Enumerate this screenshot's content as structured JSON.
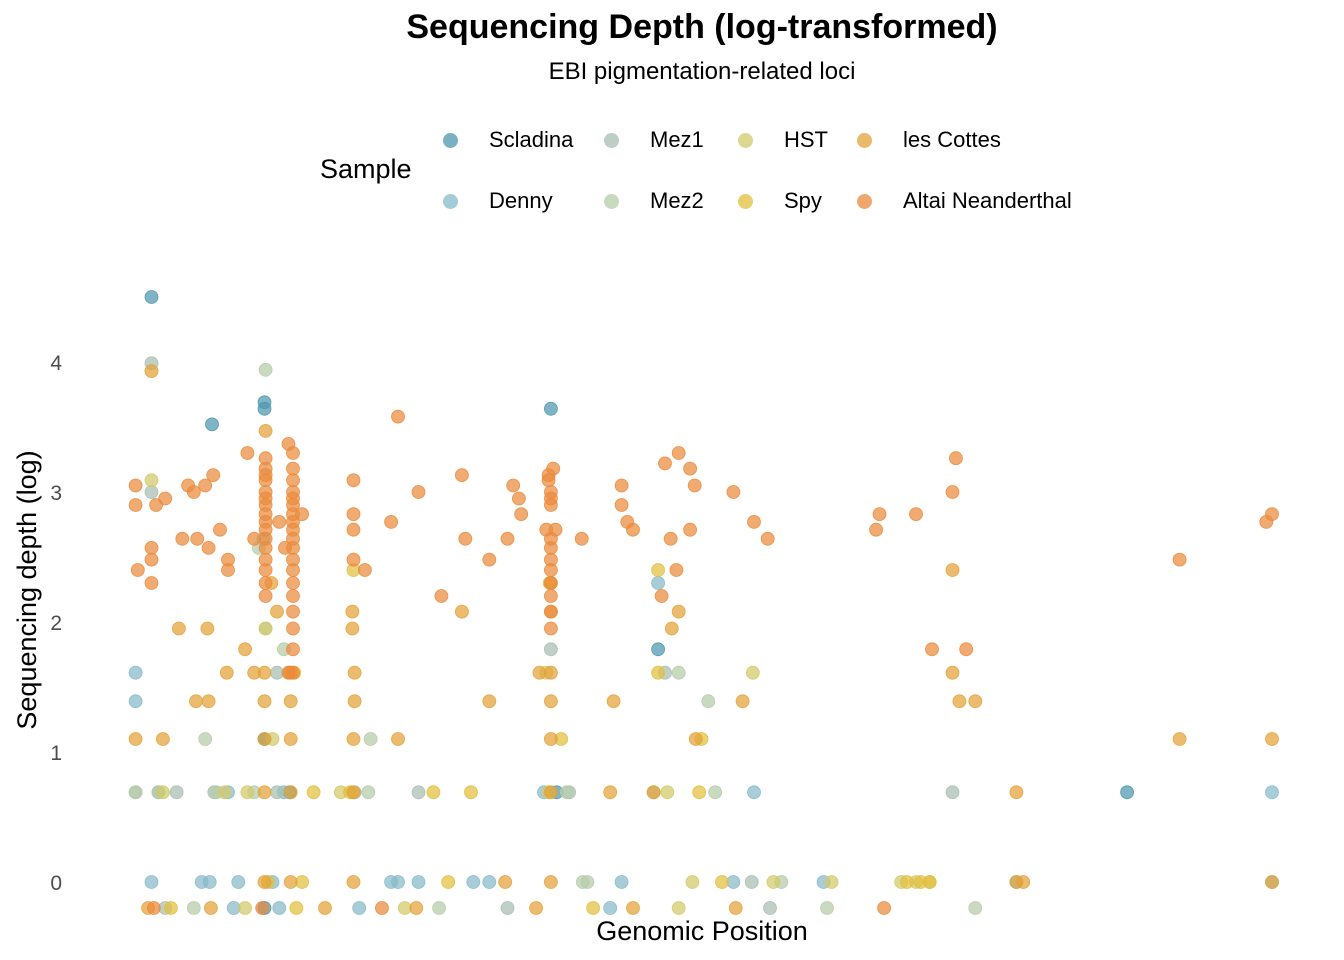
{
  "chart_data": {
    "type": "scatter",
    "title": "Sequencing Depth (log-transformed)",
    "subtitle": "EBI pigmentation-related loci",
    "xlabel": "Genomic Position",
    "ylabel": "Sequencing depth (log)",
    "xlim": [
      0,
      100
    ],
    "ylim": [
      -0.35,
      4.7
    ],
    "yticks": [
      0,
      1,
      2,
      3,
      4
    ],
    "grid": false,
    "legend_title": "Sample",
    "legend_position": "top",
    "series": [
      {
        "name": "Scladina",
        "color": "#4E97AE",
        "points": [
          [
            1.8,
            4.5
          ],
          [
            7.1,
            3.52
          ],
          [
            11.7,
            3.69
          ],
          [
            11.7,
            3.64
          ],
          [
            36.8,
            3.64
          ],
          [
            11.7,
            1.1
          ],
          [
            13.9,
            0.69
          ],
          [
            37.3,
            0.69
          ],
          [
            46.2,
            1.79
          ],
          [
            87.3,
            0.69
          ],
          [
            11.7,
            -0.2
          ]
        ]
      },
      {
        "name": "Denny",
        "color": "#86BAC9",
        "points": [
          [
            0.4,
            1.61
          ],
          [
            0.4,
            1.39
          ],
          [
            1.8,
            0
          ],
          [
            2.4,
            0.69
          ],
          [
            8.5,
            0.69
          ],
          [
            6.2,
            0
          ],
          [
            6.9,
            0
          ],
          [
            9.4,
            0
          ],
          [
            12.4,
            0
          ],
          [
            13.4,
            0.69
          ],
          [
            22.8,
            0
          ],
          [
            23.4,
            0
          ],
          [
            25.2,
            0
          ],
          [
            30.0,
            0
          ],
          [
            31.4,
            0
          ],
          [
            36.2,
            0.69
          ],
          [
            43.0,
            0
          ],
          [
            46.2,
            2.3
          ],
          [
            54.6,
            0.69
          ],
          [
            52.8,
            0
          ],
          [
            60.7,
            0
          ],
          [
            77.6,
            0
          ],
          [
            100.0,
            0
          ],
          [
            100.0,
            0.69
          ],
          [
            9.0,
            -0.2
          ],
          [
            13.0,
            -0.2
          ],
          [
            20.0,
            -0.2
          ],
          [
            42.0,
            -0.2
          ]
        ]
      },
      {
        "name": "Mez1",
        "color": "#A7BEB0",
        "points": [
          [
            1.8,
            3.99
          ],
          [
            1.8,
            3.0
          ],
          [
            0.4,
            0.69
          ],
          [
            4.0,
            0.69
          ],
          [
            7.3,
            0.69
          ],
          [
            11.6,
            2.64
          ],
          [
            12.8,
            1.61
          ],
          [
            12.8,
            0.69
          ],
          [
            19.6,
            0.69
          ],
          [
            25.2,
            0.69
          ],
          [
            36.8,
            1.79
          ],
          [
            38.4,
            0.69
          ],
          [
            45.8,
            0.69
          ],
          [
            46.8,
            1.61
          ],
          [
            54.4,
            0
          ],
          [
            72.0,
            0.69
          ],
          [
            3.0,
            -0.2
          ],
          [
            33.0,
            -0.2
          ],
          [
            56.0,
            -0.2
          ]
        ]
      },
      {
        "name": "Mez2",
        "color": "#B5CCA7",
        "points": [
          [
            11.8,
            3.94
          ],
          [
            11.2,
            2.57
          ],
          [
            11.8,
            1.95
          ],
          [
            13.4,
            1.79
          ],
          [
            6.5,
            1.1
          ],
          [
            7.5,
            0.69
          ],
          [
            0.4,
            0.69
          ],
          [
            2.4,
            0.69
          ],
          [
            10.8,
            0.69
          ],
          [
            21.0,
            1.1
          ],
          [
            20.8,
            0.69
          ],
          [
            38.2,
            0.69
          ],
          [
            39.6,
            0
          ],
          [
            48.0,
            1.61
          ],
          [
            50.6,
            1.39
          ],
          [
            51.2,
            0.69
          ],
          [
            40.0,
            0
          ],
          [
            57.0,
            0
          ],
          [
            5.5,
            -0.2
          ],
          [
            27.0,
            -0.2
          ],
          [
            61.0,
            -0.2
          ],
          [
            74.0,
            -0.2
          ]
        ]
      },
      {
        "name": "HST",
        "color": "#D3C96A",
        "points": [
          [
            1.8,
            3.09
          ],
          [
            11.8,
            1.95
          ],
          [
            13.9,
            1.61
          ],
          [
            12.4,
            1.1
          ],
          [
            2.8,
            0.69
          ],
          [
            8.2,
            0.69
          ],
          [
            10.2,
            0.69
          ],
          [
            18.4,
            0.69
          ],
          [
            36.6,
            0.69
          ],
          [
            36.4,
            1.61
          ],
          [
            47.0,
            0.69
          ],
          [
            49.2,
            0
          ],
          [
            54.5,
            1.61
          ],
          [
            56.3,
            0
          ],
          [
            61.4,
            0
          ],
          [
            67.5,
            0
          ],
          [
            68.8,
            0
          ],
          [
            70.0,
            0
          ],
          [
            10.0,
            -0.2
          ],
          [
            24.0,
            -0.2
          ],
          [
            48.0,
            -0.2
          ]
        ]
      },
      {
        "name": "Spy",
        "color": "#E2BF3D",
        "points": [
          [
            19.5,
            2.4
          ],
          [
            14.3,
            1.61
          ],
          [
            16.0,
            0.69
          ],
          [
            26.5,
            0.69
          ],
          [
            27.8,
            0
          ],
          [
            15.0,
            0
          ],
          [
            12.0,
            0
          ],
          [
            19.2,
            0.69
          ],
          [
            29.8,
            0.69
          ],
          [
            37.7,
            1.1
          ],
          [
            36.7,
            2.3
          ],
          [
            46.2,
            2.4
          ],
          [
            46.2,
            1.61
          ],
          [
            49.8,
            0.69
          ],
          [
            50.0,
            1.1
          ],
          [
            51.8,
            0
          ],
          [
            68.0,
            0
          ],
          [
            69.2,
            0
          ],
          [
            70.0,
            0
          ],
          [
            3.5,
            -0.2
          ],
          [
            14.5,
            -0.2
          ],
          [
            40.5,
            -0.2
          ]
        ]
      },
      {
        "name": "les Cottes",
        "color": "#E3A238",
        "points": [
          [
            1.8,
            3.93
          ],
          [
            11.8,
            3.47
          ],
          [
            12.3,
            2.3
          ],
          [
            12.8,
            2.08
          ],
          [
            0.4,
            1.1
          ],
          [
            2.8,
            1.1
          ],
          [
            4.2,
            1.95
          ],
          [
            6.7,
            1.95
          ],
          [
            5.7,
            1.39
          ],
          [
            6.8,
            1.39
          ],
          [
            8.4,
            1.61
          ],
          [
            10.0,
            1.79
          ],
          [
            10.8,
            1.61
          ],
          [
            11.7,
            1.61
          ],
          [
            11.7,
            1.39
          ],
          [
            11.7,
            1.1
          ],
          [
            11.7,
            0.69
          ],
          [
            11.7,
            0
          ],
          [
            14.0,
            1.61
          ],
          [
            14.0,
            1.39
          ],
          [
            14.0,
            1.1
          ],
          [
            14.0,
            0.69
          ],
          [
            14.0,
            0
          ],
          [
            19.4,
            2.08
          ],
          [
            19.4,
            1.95
          ],
          [
            19.6,
            1.61
          ],
          [
            19.6,
            1.39
          ],
          [
            19.5,
            1.1
          ],
          [
            19.5,
            0.69
          ],
          [
            19.5,
            0
          ],
          [
            23.4,
            1.1
          ],
          [
            29.0,
            2.08
          ],
          [
            31.4,
            1.39
          ],
          [
            32.8,
            0
          ],
          [
            35.8,
            1.61
          ],
          [
            36.8,
            2.3
          ],
          [
            36.8,
            2.08
          ],
          [
            36.8,
            1.61
          ],
          [
            36.8,
            1.39
          ],
          [
            36.8,
            1.1
          ],
          [
            36.8,
            0.69
          ],
          [
            36.8,
            0
          ],
          [
            42.0,
            0.69
          ],
          [
            42.3,
            1.39
          ],
          [
            45.8,
            0.69
          ],
          [
            47.4,
            1.95
          ],
          [
            48.0,
            2.08
          ],
          [
            49.5,
            1.1
          ],
          [
            53.6,
            1.39
          ],
          [
            72.0,
            2.4
          ],
          [
            72.0,
            1.61
          ],
          [
            72.6,
            1.39
          ],
          [
            74.0,
            1.39
          ],
          [
            77.6,
            0.69
          ],
          [
            77.6,
            0
          ],
          [
            78.2,
            0
          ],
          [
            91.9,
            1.1
          ],
          [
            100.0,
            1.1
          ],
          [
            100.0,
            0
          ],
          [
            1.5,
            -0.2
          ],
          [
            7.0,
            -0.2
          ],
          [
            17.0,
            -0.2
          ],
          [
            25.0,
            -0.2
          ],
          [
            35.5,
            -0.2
          ],
          [
            44.0,
            -0.2
          ],
          [
            53.0,
            -0.2
          ]
        ]
      },
      {
        "name": "Altai Neanderthal",
        "color": "#EA8A3C",
        "points": [
          [
            0.4,
            3.05
          ],
          [
            0.4,
            2.9
          ],
          [
            0.6,
            2.4
          ],
          [
            1.8,
            2.57
          ],
          [
            1.8,
            2.48
          ],
          [
            1.8,
            2.3
          ],
          [
            2.2,
            2.9
          ],
          [
            3.0,
            2.95
          ],
          [
            4.5,
            2.64
          ],
          [
            5.0,
            3.05
          ],
          [
            5.5,
            3.0
          ],
          [
            5.8,
            2.64
          ],
          [
            6.5,
            3.05
          ],
          [
            6.8,
            2.57
          ],
          [
            7.2,
            3.13
          ],
          [
            7.8,
            2.71
          ],
          [
            8.5,
            2.48
          ],
          [
            8.5,
            2.4
          ],
          [
            10.2,
            3.3
          ],
          [
            10.8,
            2.64
          ],
          [
            13.0,
            2.77
          ],
          [
            11.8,
            3.18
          ],
          [
            11.8,
            3.13
          ],
          [
            11.8,
            3.09
          ],
          [
            11.8,
            3.0
          ],
          [
            11.8,
            2.95
          ],
          [
            11.8,
            2.9
          ],
          [
            11.8,
            2.83
          ],
          [
            11.8,
            2.77
          ],
          [
            11.8,
            2.71
          ],
          [
            11.8,
            2.64
          ],
          [
            11.8,
            2.57
          ],
          [
            11.8,
            2.48
          ],
          [
            11.8,
            2.4
          ],
          [
            11.8,
            2.3
          ],
          [
            11.8,
            2.2
          ],
          [
            11.8,
            3.26
          ],
          [
            13.8,
            3.37
          ],
          [
            14.2,
            3.3
          ],
          [
            14.2,
            3.18
          ],
          [
            14.2,
            3.09
          ],
          [
            14.2,
            3.0
          ],
          [
            14.2,
            2.95
          ],
          [
            14.2,
            2.9
          ],
          [
            14.2,
            2.83
          ],
          [
            14.2,
            2.77
          ],
          [
            14.2,
            2.71
          ],
          [
            14.2,
            2.64
          ],
          [
            14.2,
            2.57
          ],
          [
            14.2,
            2.48
          ],
          [
            14.2,
            2.4
          ],
          [
            14.2,
            2.3
          ],
          [
            14.2,
            2.2
          ],
          [
            14.2,
            2.08
          ],
          [
            14.2,
            1.95
          ],
          [
            14.2,
            1.79
          ],
          [
            14.2,
            1.61
          ],
          [
            13.8,
            1.61
          ],
          [
            13.5,
            2.57
          ],
          [
            15.0,
            2.83
          ],
          [
            19.5,
            3.09
          ],
          [
            19.5,
            2.83
          ],
          [
            19.5,
            2.71
          ],
          [
            19.5,
            2.48
          ],
          [
            20.5,
            2.4
          ],
          [
            23.4,
            3.58
          ],
          [
            22.8,
            2.77
          ],
          [
            25.2,
            3.0
          ],
          [
            27.2,
            2.2
          ],
          [
            29.0,
            3.13
          ],
          [
            29.3,
            2.64
          ],
          [
            31.4,
            2.48
          ],
          [
            33.0,
            2.64
          ],
          [
            33.5,
            3.05
          ],
          [
            34.0,
            2.95
          ],
          [
            34.2,
            2.83
          ],
          [
            36.6,
            3.13
          ],
          [
            37.0,
            3.18
          ],
          [
            36.6,
            3.09
          ],
          [
            36.8,
            3.0
          ],
          [
            36.8,
            2.95
          ],
          [
            36.8,
            2.9
          ],
          [
            36.4,
            2.71
          ],
          [
            37.2,
            2.71
          ],
          [
            36.8,
            2.64
          ],
          [
            36.8,
            2.57
          ],
          [
            36.8,
            2.48
          ],
          [
            36.8,
            2.4
          ],
          [
            36.8,
            2.3
          ],
          [
            36.8,
            2.2
          ],
          [
            36.8,
            2.08
          ],
          [
            36.8,
            1.95
          ],
          [
            39.5,
            2.64
          ],
          [
            43.0,
            3.05
          ],
          [
            43.0,
            2.9
          ],
          [
            43.5,
            2.77
          ],
          [
            44.0,
            2.71
          ],
          [
            46.5,
            2.2
          ],
          [
            46.8,
            3.22
          ],
          [
            48.0,
            3.3
          ],
          [
            49.0,
            3.18
          ],
          [
            49.4,
            3.05
          ],
          [
            47.3,
            2.64
          ],
          [
            47.8,
            2.4
          ],
          [
            49.0,
            2.71
          ],
          [
            52.8,
            3.0
          ],
          [
            54.6,
            2.77
          ],
          [
            55.8,
            2.64
          ],
          [
            65.3,
            2.71
          ],
          [
            65.6,
            2.83
          ],
          [
            68.8,
            2.83
          ],
          [
            70.2,
            1.79
          ],
          [
            72.0,
            3.0
          ],
          [
            72.3,
            3.26
          ],
          [
            73.2,
            1.79
          ],
          [
            91.9,
            2.48
          ],
          [
            100.0,
            2.83
          ],
          [
            99.5,
            2.77
          ],
          [
            2.0,
            -0.2
          ],
          [
            11.5,
            -0.2
          ],
          [
            22.0,
            -0.2
          ],
          [
            66.0,
            -0.2
          ]
        ]
      }
    ]
  }
}
